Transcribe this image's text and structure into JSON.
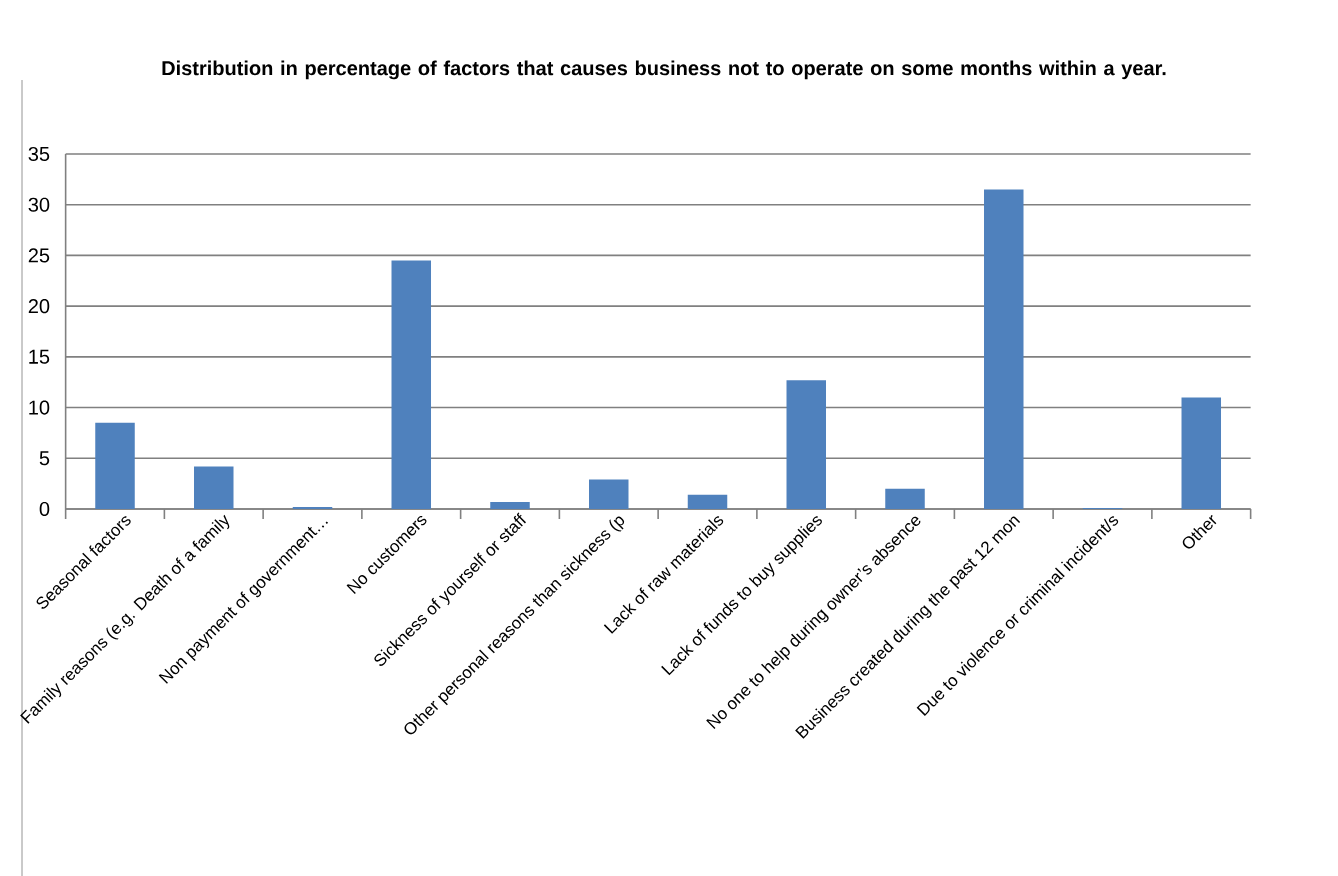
{
  "chart_data": {
    "type": "bar",
    "title": "Distribution in percentage of factors that causes business not to operate on some months within a year.",
    "categories": [
      "Seasonal factors",
      "Family reasons (e.g. Death of a family",
      "Non payment of government…",
      "No customers",
      "Sickness of yourself or staff",
      "Other personal reasons than sickness (p",
      "Lack of raw materials",
      "Lack of funds to buy supplies",
      "No one to help during owner’s absence",
      "Business created during the past 12 mon",
      "Due to violence or criminal incident/s",
      "Other"
    ],
    "values": [
      8.5,
      4.2,
      0.2,
      24.5,
      0.7,
      2.9,
      1.4,
      12.7,
      2.0,
      31.5,
      0.1,
      11.0
    ],
    "color": "#4f81bd",
    "ylim": [
      0,
      35
    ],
    "yticks": [
      0,
      5,
      10,
      15,
      20,
      25,
      30,
      35
    ],
    "grid": "y"
  }
}
